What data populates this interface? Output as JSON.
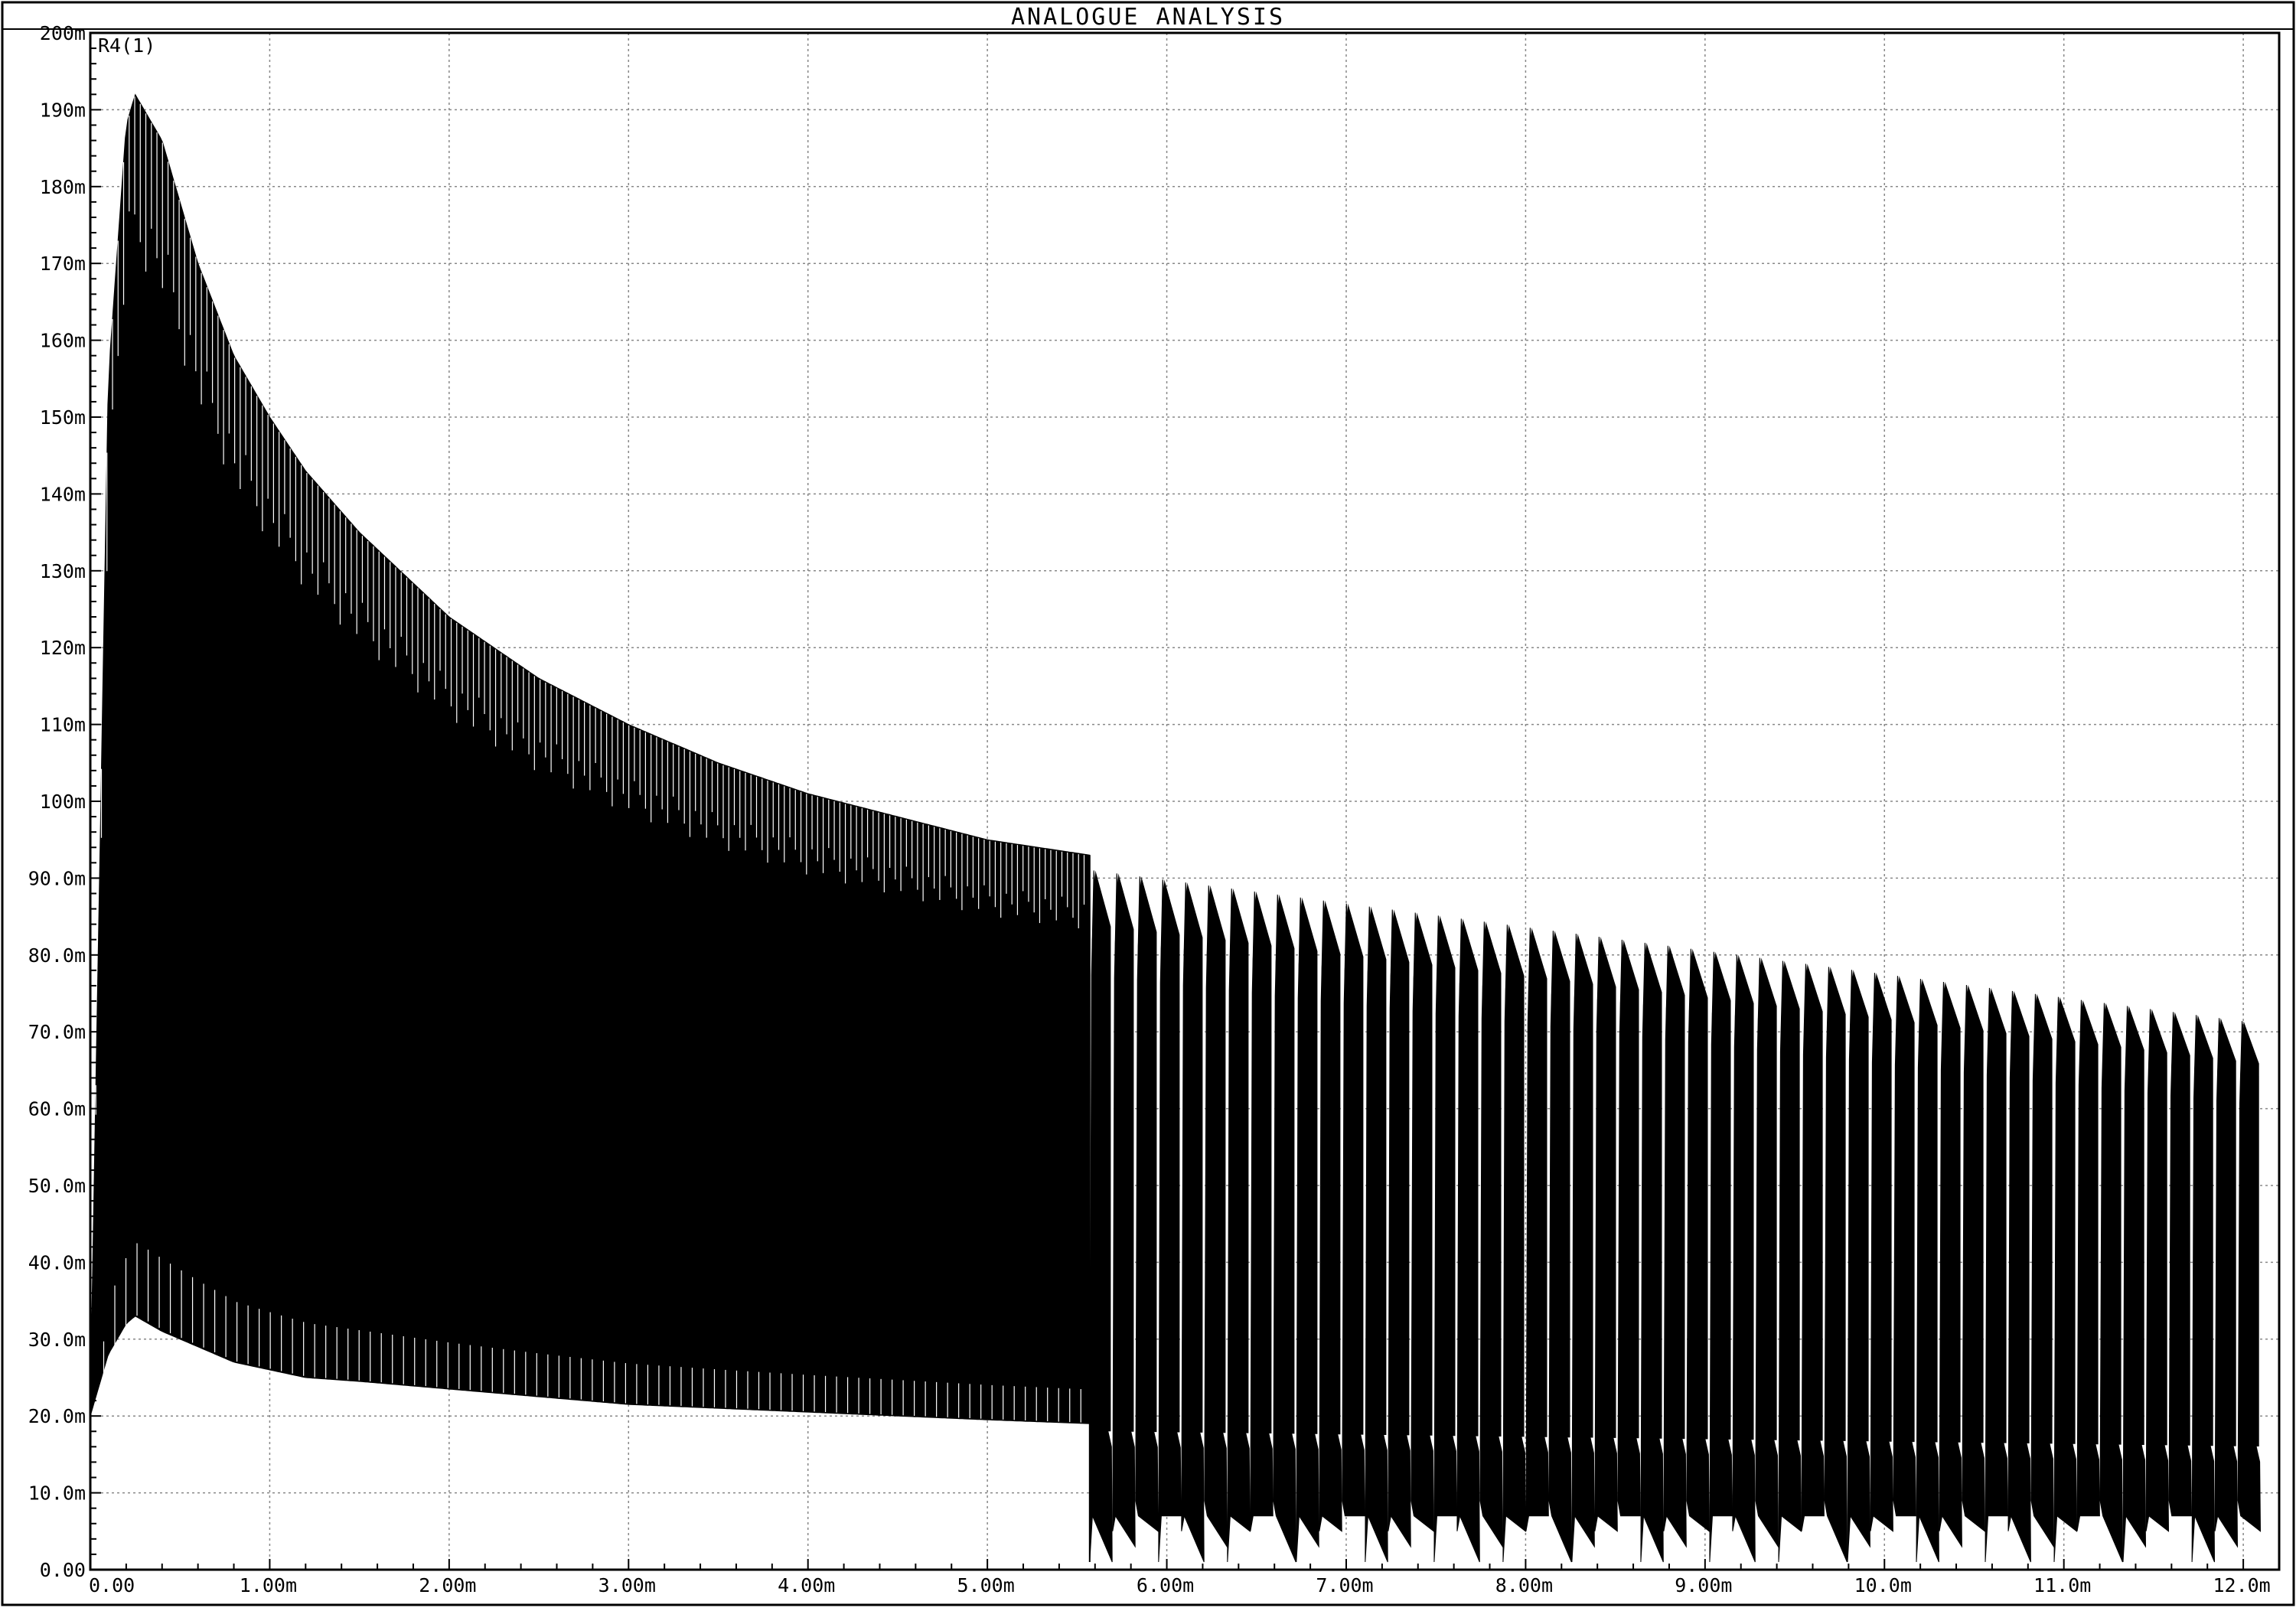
{
  "window": {
    "title": "ANALOGUE ANALYSIS"
  },
  "colors": {
    "background": "#ffffff",
    "trace": "#000000",
    "grid": "#888888",
    "frame": "#000000"
  },
  "chart_data": {
    "type": "line",
    "title": "ANALOGUE ANALYSIS",
    "xlabel": "",
    "ylabel": "",
    "xlim": [
      0,
      0.0122
    ],
    "ylim": [
      0,
      0.2
    ],
    "grid": true,
    "legend": "none",
    "x_ticks": [
      {
        "value": 0.0,
        "label": "0.00"
      },
      {
        "value": 0.001,
        "label": "1.00m"
      },
      {
        "value": 0.002,
        "label": "2.00m"
      },
      {
        "value": 0.003,
        "label": "3.00m"
      },
      {
        "value": 0.004,
        "label": "4.00m"
      },
      {
        "value": 0.005,
        "label": "5.00m"
      },
      {
        "value": 0.006,
        "label": "6.00m"
      },
      {
        "value": 0.007,
        "label": "7.00m"
      },
      {
        "value": 0.008,
        "label": "8.00m"
      },
      {
        "value": 0.009,
        "label": "9.00m"
      },
      {
        "value": 0.01,
        "label": "10.0m"
      },
      {
        "value": 0.011,
        "label": "11.0m"
      },
      {
        "value": 0.012,
        "label": "12.0m"
      }
    ],
    "y_ticks": [
      {
        "value": 0.0,
        "label": "0.00"
      },
      {
        "value": 0.01,
        "label": "10.0m"
      },
      {
        "value": 0.02,
        "label": "20.0m"
      },
      {
        "value": 0.03,
        "label": "30.0m"
      },
      {
        "value": 0.04,
        "label": "40.0m"
      },
      {
        "value": 0.05,
        "label": "50.0m"
      },
      {
        "value": 0.06,
        "label": "60.0m"
      },
      {
        "value": 0.07,
        "label": "70.0m"
      },
      {
        "value": 0.08,
        "label": "80.0m"
      },
      {
        "value": 0.09,
        "label": "90.0m"
      },
      {
        "value": 0.1,
        "label": "100m"
      },
      {
        "value": 0.11,
        "label": "110m"
      },
      {
        "value": 0.12,
        "label": "120m"
      },
      {
        "value": 0.13,
        "label": "130m"
      },
      {
        "value": 0.14,
        "label": "140m"
      },
      {
        "value": 0.15,
        "label": "150m"
      },
      {
        "value": 0.16,
        "label": "160m"
      },
      {
        "value": 0.17,
        "label": "170m"
      },
      {
        "value": 0.18,
        "label": "180m"
      },
      {
        "value": 0.19,
        "label": "190m"
      },
      {
        "value": 0.2,
        "label": "200m"
      }
    ],
    "series": [
      {
        "name": "R4(1)",
        "color": "#000000",
        "description_of_shape": "dense oscillation; envelope rises to a peak then decays until ~5.57m, then periodic charging pulses",
        "upper_envelope": {
          "x": [
            0.0,
            0.0001,
            0.0002,
            0.00025,
            0.0004,
            0.0006,
            0.0008,
            0.001,
            0.0012,
            0.0015,
            0.002,
            0.0025,
            0.003,
            0.0035,
            0.004,
            0.0045,
            0.005,
            0.00557
          ],
          "y": [
            0.022,
            0.155,
            0.188,
            0.192,
            0.186,
            0.17,
            0.158,
            0.15,
            0.143,
            0.135,
            0.124,
            0.116,
            0.11,
            0.105,
            0.101,
            0.098,
            0.095,
            0.093
          ]
        },
        "lower_envelope": {
          "x": [
            0.0,
            0.0001,
            0.0002,
            0.00025,
            0.0004,
            0.0006,
            0.0008,
            0.001,
            0.0012,
            0.0015,
            0.002,
            0.0025,
            0.003,
            0.0035,
            0.004,
            0.0045,
            0.005,
            0.00557
          ],
          "y": [
            0.02,
            0.028,
            0.032,
            0.033,
            0.031,
            0.029,
            0.027,
            0.026,
            0.025,
            0.0245,
            0.0235,
            0.0225,
            0.0215,
            0.021,
            0.0205,
            0.02,
            0.0195,
            0.019
          ]
        },
        "pulse_section": {
          "start_x": 0.00557,
          "end_x": 0.0122,
          "pulse_period": 0.000128,
          "peak_start": 0.091,
          "peak_end": 0.071,
          "trough_start": 0.018,
          "trough_end": 0.016,
          "dip_min": 0.001
        }
      }
    ]
  }
}
